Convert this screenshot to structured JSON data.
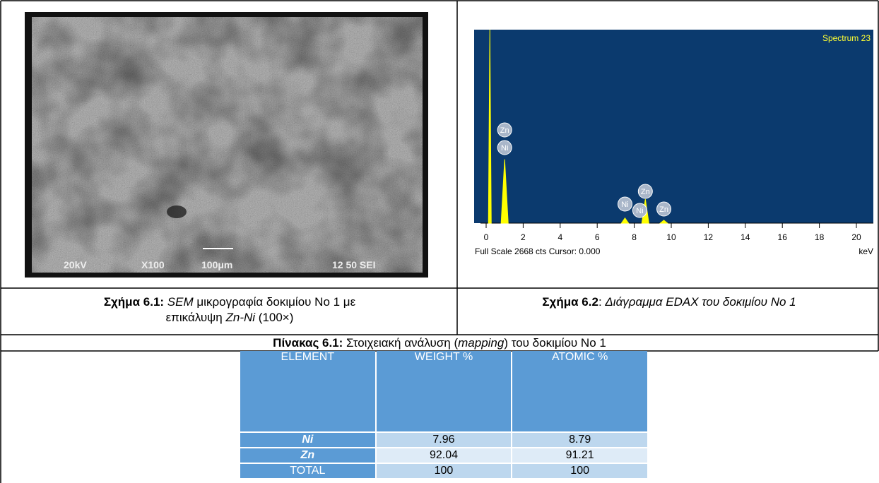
{
  "sem_image": {
    "labels": [
      "20kV",
      "X100",
      "100μm",
      "12 50 SEI"
    ]
  },
  "edax": {
    "title": "Spectrum 23",
    "footer": "Full Scale 2668 cts Cursor: 0.000",
    "unit": "keV",
    "xlim": [
      -0.5,
      21
    ],
    "ylim": [
      0,
      2668
    ],
    "xticks": [
      0,
      2,
      4,
      6,
      8,
      10,
      12,
      14,
      16,
      18,
      20
    ],
    "peaks": [
      {
        "x": 0.2,
        "counts": 2668
      },
      {
        "x": 1.0,
        "counts": 880
      },
      {
        "x": 7.5,
        "counts": 70
      },
      {
        "x": 8.6,
        "counts": 330
      },
      {
        "x": 9.6,
        "counts": 40
      }
    ],
    "peak_labels": [
      {
        "text": "Zn",
        "x": 1.0
      },
      {
        "text": "Ni",
        "x": 1.0
      },
      {
        "text": "Ni",
        "x": 7.5
      },
      {
        "text": "Ni",
        "x": 8.3
      },
      {
        "text": "Zn",
        "x": 8.6
      },
      {
        "text": "Zn",
        "x": 9.6
      }
    ]
  },
  "caption_left": [
    "Σχήμα 6.1:",
    "SEM",
    "μικρογραφία δοκιμίου Νο 1 με",
    "επικάλυψη",
    "Zn-Ni",
    "(100×)"
  ],
  "caption_right": [
    "Σχήμα 6.2",
    ": ",
    "Διάγραμμα EDAX του δοκιμίου Νο 1"
  ],
  "table_caption": [
    "Πίνακας 6.1:",
    "Στοιχειακή ανάλυση (",
    "mapping",
    ") του δοκιμίου Νο 1"
  ],
  "table": {
    "header": [
      "ELEMENT",
      "WEIGHT %",
      "ATOMIC %"
    ],
    "rows": [
      [
        "Ni",
        7.96,
        8.79
      ],
      [
        "Zn",
        92.04,
        91.21
      ],
      [
        "TOTAL",
        100,
        100
      ]
    ]
  }
}
